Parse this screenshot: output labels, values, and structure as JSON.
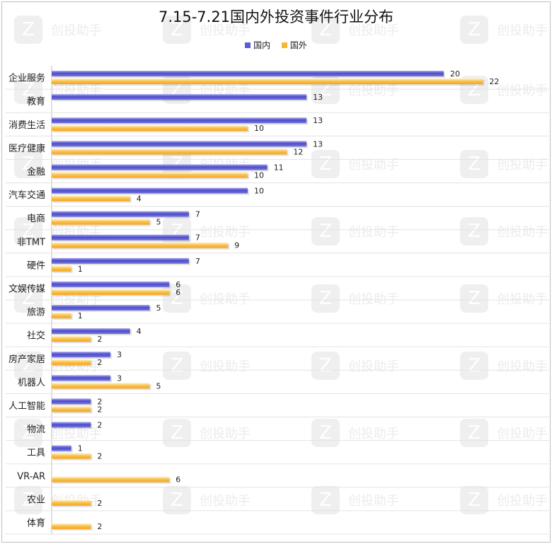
{
  "chart_data": {
    "type": "bar",
    "orientation": "horizontal",
    "title": "7.15-7.21国内外投资事件行业分布",
    "legend_position": "top",
    "grid": false,
    "xlim": [
      0,
      24
    ],
    "categories": [
      "企业服务",
      "教育",
      "消费生活",
      "医疗健康",
      "金融",
      "汽车交通",
      "电商",
      "非TMT",
      "硬件",
      "文娱传媒",
      "旅游",
      "社交",
      "房产家居",
      "机器人",
      "人工智能",
      "物流",
      "工具",
      "VR-AR",
      "农业",
      "体育"
    ],
    "series": [
      {
        "name": "国内",
        "color": "#5b5bd6",
        "values": [
          20,
          13,
          13,
          13,
          11,
          10,
          7,
          7,
          7,
          6,
          5,
          4,
          3,
          3,
          2,
          2,
          1,
          null,
          null,
          null
        ]
      },
      {
        "name": "国外",
        "color": "#f8b631",
        "values": [
          22,
          null,
          10,
          12,
          10,
          4,
          5,
          9,
          1,
          6,
          1,
          2,
          2,
          5,
          2,
          null,
          2,
          6,
          2,
          2
        ]
      }
    ]
  },
  "watermark": {
    "text": "创投助手"
  }
}
